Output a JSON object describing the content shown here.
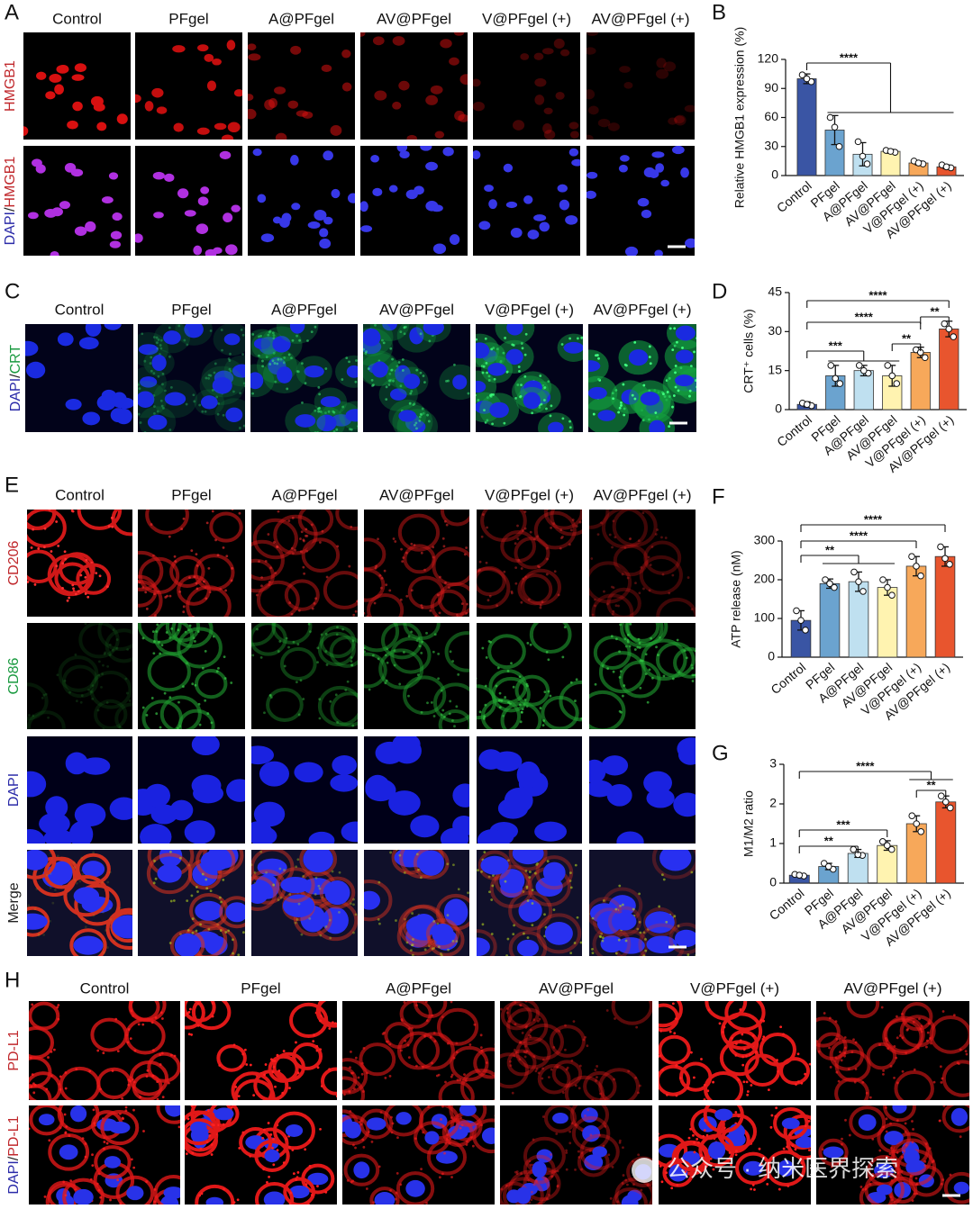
{
  "figure": {
    "A": {
      "label": "A",
      "columns": [
        "Control",
        "PFgel",
        "A@PFgel",
        "AV@PFgel",
        "V@PFgel (+)",
        "AV@PFgel (+)"
      ],
      "rows": [
        [
          {
            "text": "HMGB1",
            "color": "#c0282c"
          }
        ],
        [
          {
            "text": "DAPI",
            "color": "#2a2aa8"
          },
          {
            "text": "/",
            "color": "#222"
          },
          {
            "text": "HMGB1",
            "color": "#c0282c"
          }
        ]
      ]
    },
    "C": {
      "label": "C",
      "columns": [
        "Control",
        "PFgel",
        "A@PFgel",
        "AV@PFgel",
        "V@PFgel (+)",
        "AV@PFgel (+)"
      ],
      "rows": [
        [
          {
            "text": "DAPI",
            "color": "#2a2aa8"
          },
          {
            "text": "/",
            "color": "#222"
          },
          {
            "text": "CRT",
            "color": "#1a9a40"
          }
        ]
      ]
    },
    "E": {
      "label": "E",
      "columns": [
        "Control",
        "PFgel",
        "A@PFgel",
        "AV@PFgel",
        "V@PFgel (+)",
        "AV@PFgel (+)"
      ],
      "rows": [
        [
          {
            "text": "CD206",
            "color": "#c0282c"
          }
        ],
        [
          {
            "text": "CD86",
            "color": "#1a9a40"
          }
        ],
        [
          {
            "text": "DAPI",
            "color": "#2a2aa8"
          }
        ],
        [
          {
            "text": "Merge",
            "color": "#222"
          }
        ]
      ]
    },
    "H": {
      "label": "H",
      "columns": [
        "Control",
        "PFgel",
        "A@PFgel",
        "AV@PFgel",
        "V@PFgel (+)",
        "AV@PFgel (+)"
      ],
      "rows": [
        [
          {
            "text": "PD-L1",
            "color": "#c0282c"
          }
        ],
        [
          {
            "text": "DAPI",
            "color": "#2a2aa8"
          },
          {
            "text": "/",
            "color": "#222"
          },
          {
            "text": "PD-L1",
            "color": "#c0282c"
          }
        ]
      ]
    },
    "watermark": "公众号 · 纳米医界探索"
  },
  "chart_data": [
    {
      "type": "bar",
      "label": "B",
      "y_label": "Relative HMGB1 expression (%)",
      "categories": [
        "Control",
        "PFgel",
        "A@PFgel",
        "AV@PFgel",
        "V@PFgel (+)",
        "AV@PFgel (+)"
      ],
      "values": [
        100,
        47,
        22,
        25,
        13,
        9
      ],
      "errors": [
        5,
        15,
        12,
        2,
        2,
        2
      ],
      "points": [
        [
          104,
          97,
          100
        ],
        [
          60,
          30,
          50
        ],
        [
          35,
          12,
          20
        ],
        [
          26,
          24,
          25
        ],
        [
          15,
          12,
          13
        ],
        [
          11,
          8,
          9
        ]
      ],
      "colors": [
        "#3a55a4",
        "#6ba3cf",
        "#bfe0f0",
        "#fff3b0",
        "#f7a85a",
        "#e8552e"
      ],
      "ylim": [
        0,
        120
      ],
      "yticks": [
        0,
        30,
        60,
        90,
        120
      ],
      "significance": [
        "****"
      ]
    },
    {
      "type": "bar",
      "label": "D",
      "y_label": "CRT⁺ cells (%)",
      "categories": [
        "Control",
        "PFgel",
        "A@PFgel",
        "AV@PFgel",
        "V@PFgel (+)",
        "AV@PFgel (+)"
      ],
      "values": [
        2,
        13,
        15,
        13,
        22,
        31
      ],
      "errors": [
        1,
        4,
        2,
        4,
        2,
        3
      ],
      "points": [
        [
          2.5,
          1.5,
          2
        ],
        [
          17,
          10,
          12
        ],
        [
          17,
          14,
          15
        ],
        [
          17,
          10,
          13
        ],
        [
          23,
          20,
          22
        ],
        [
          33,
          28,
          31
        ]
      ],
      "colors": [
        "#3a55a4",
        "#6ba3cf",
        "#bfe0f0",
        "#fff3b0",
        "#f7a85a",
        "#e8552e"
      ],
      "ylim": [
        0,
        45
      ],
      "yticks": [
        0,
        15,
        30,
        45
      ],
      "significance": [
        "****",
        "****",
        "***",
        "**",
        "**"
      ]
    },
    {
      "type": "bar",
      "label": "F",
      "y_label": "ATP release (nM)",
      "categories": [
        "Control",
        "PFgel",
        "A@PFgel",
        "AV@PFgel",
        "V@PFgel (+)",
        "AV@PFgel (+)"
      ],
      "values": [
        95,
        190,
        195,
        180,
        235,
        260
      ],
      "errors": [
        25,
        12,
        25,
        20,
        25,
        25
      ],
      "points": [
        [
          120,
          70,
          95
        ],
        [
          200,
          180,
          190
        ],
        [
          220,
          170,
          195
        ],
        [
          200,
          160,
          180
        ],
        [
          260,
          210,
          235
        ],
        [
          285,
          240,
          255
        ]
      ],
      "colors": [
        "#3a55a4",
        "#6ba3cf",
        "#bfe0f0",
        "#fff3b0",
        "#f7a85a",
        "#e8552e"
      ],
      "ylim": [
        0,
        300
      ],
      "yticks": [
        0,
        100,
        200,
        300
      ],
      "significance": [
        "****",
        "****",
        "**"
      ]
    },
    {
      "type": "bar",
      "label": "G",
      "y_label": "M1/M2 ratio",
      "categories": [
        "Control",
        "PFgel",
        "A@PFgel",
        "AV@PFgel",
        "V@PFgel (+)",
        "AV@PFgel (+)"
      ],
      "values": [
        0.2,
        0.42,
        0.75,
        0.95,
        1.5,
        2.05
      ],
      "errors": [
        0.03,
        0.08,
        0.1,
        0.12,
        0.2,
        0.15
      ],
      "points": [
        [
          0.22,
          0.18,
          0.2
        ],
        [
          0.5,
          0.35,
          0.42
        ],
        [
          0.85,
          0.7,
          0.72
        ],
        [
          1.05,
          0.85,
          0.95
        ],
        [
          1.7,
          1.3,
          1.5
        ],
        [
          2.2,
          1.9,
          2.05
        ]
      ],
      "colors": [
        "#3a55a4",
        "#6ba3cf",
        "#bfe0f0",
        "#fff3b0",
        "#f7a85a",
        "#e8552e"
      ],
      "ylim": [
        0,
        3
      ],
      "yticks": [
        0,
        1,
        2,
        3
      ],
      "significance": [
        "****",
        "**",
        "***",
        "**"
      ]
    }
  ]
}
